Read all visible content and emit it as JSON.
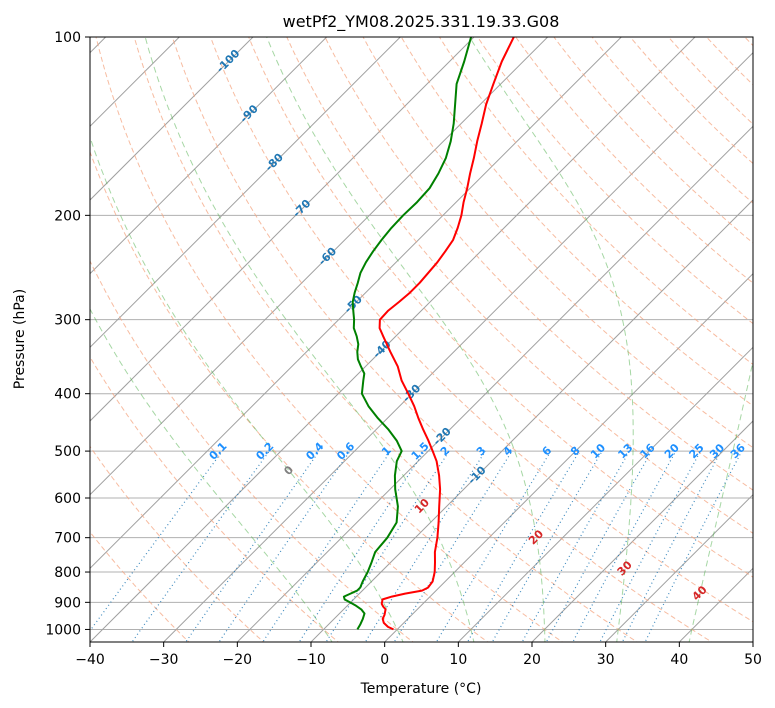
{
  "chart_data": {
    "type": "line",
    "title": "wetPf2_YM08.2025.331.19.33.G08",
    "xlabel": "Temperature (°C)",
    "ylabel": "Pressure (hPa)",
    "xlim": [
      -40,
      50
    ],
    "ylim": [
      1050,
      100
    ],
    "x_ticks": [
      -40,
      -30,
      -20,
      -10,
      0,
      10,
      20,
      30,
      40,
      50
    ],
    "x_tick_labels": [
      "−40",
      "−30",
      "−20",
      "−10",
      "0",
      "10",
      "20",
      "30",
      "40",
      "50"
    ],
    "y_ticks": [
      1000,
      900,
      800,
      700,
      600,
      500,
      400,
      300,
      200,
      100
    ],
    "y_tick_labels": [
      "1000",
      "900",
      "800",
      "700",
      "600",
      "500",
      "400",
      "300",
      "200",
      "100"
    ],
    "skew": 1.0,
    "isotherms": [
      -120,
      -110,
      -100,
      -90,
      -80,
      -70,
      -60,
      -50,
      -40,
      -30,
      -20,
      -10,
      0,
      10,
      20,
      30,
      40,
      50
    ],
    "dry_adiabats": [
      -30,
      -20,
      -10,
      0,
      10,
      20,
      30,
      40,
      50,
      60,
      70,
      80,
      90,
      100,
      110,
      120,
      130,
      140,
      150,
      160,
      170,
      180,
      190,
      200
    ],
    "moist_adiabats": [
      -10,
      0,
      10,
      20,
      30,
      40
    ],
    "mixing_ratios": [
      0.1,
      0.2,
      0.4,
      0.6,
      1,
      1.5,
      2,
      3,
      4,
      6,
      8,
      10,
      13,
      16,
      20,
      25,
      30,
      36
    ],
    "mixing_ratio_labels": [
      "0.1",
      "0.2",
      "0.4",
      "0.6",
      "1",
      "1.5",
      "2",
      "3",
      "4",
      "6",
      "8",
      "10",
      "13",
      "16",
      "20",
      "25",
      "30",
      "36"
    ],
    "isotherm_labels": [
      {
        "text": "-100",
        "value": -100,
        "p": 110
      },
      {
        "text": "-90",
        "value": -90,
        "p": 135
      },
      {
        "text": "-80",
        "value": -80,
        "p": 163
      },
      {
        "text": "-70",
        "value": -70,
        "p": 195
      },
      {
        "text": "-60",
        "value": -60,
        "p": 235
      },
      {
        "text": "-50",
        "value": -50,
        "p": 283
      },
      {
        "text": "-40",
        "value": -40,
        "p": 337
      },
      {
        "text": "-30",
        "value": -30,
        "p": 400
      },
      {
        "text": "-20",
        "value": -20,
        "p": 473
      },
      {
        "text": "-10",
        "value": -10,
        "p": 550
      }
    ],
    "adiabat_labels": [
      {
        "text": "0",
        "value": 0,
        "color": "#808080"
      },
      {
        "text": "10",
        "value": 10,
        "color": "#d62728"
      },
      {
        "text": "20",
        "value": 20,
        "color": "#d62728"
      },
      {
        "text": "30",
        "value": 30,
        "color": "#d62728"
      },
      {
        "text": "40",
        "value": 40,
        "color": "#d62728"
      }
    ],
    "series": [
      {
        "name": "Temperature",
        "color": "#ff0000",
        "pressure": [
          1000,
          990,
          975,
          960,
          945,
          935,
          925,
          915,
          905,
          895,
          890,
          880,
          870,
          860,
          850,
          830,
          800,
          770,
          740,
          700,
          660,
          620,
          580,
          550,
          520,
          500,
          480,
          460,
          440,
          420,
          400,
          380,
          360,
          340,
          320,
          310,
          300,
          290,
          280,
          270,
          260,
          250,
          240,
          230,
          220,
          210,
          200,
          190,
          180,
          170,
          160,
          150,
          140,
          130,
          120,
          110,
          100
        ],
        "values": [
          -0.5,
          -1.6,
          -2.7,
          -3.4,
          -3.7,
          -4.0,
          -4.3,
          -5.0,
          -5.6,
          -5.9,
          -6.1,
          -5.2,
          -3.8,
          -1.9,
          -1.5,
          -1.7,
          -2.7,
          -4.0,
          -5.4,
          -7.0,
          -8.9,
          -11.0,
          -13.2,
          -15.2,
          -17.5,
          -19.4,
          -21.4,
          -23.6,
          -25.8,
          -28.0,
          -30.5,
          -33.2,
          -35.6,
          -38.6,
          -41.7,
          -43.3,
          -44.4,
          -44.5,
          -44.2,
          -44.0,
          -44.0,
          -44.2,
          -44.4,
          -44.8,
          -45.3,
          -46.3,
          -47.5,
          -49.0,
          -50.4,
          -52.0,
          -53.6,
          -55.4,
          -57.2,
          -59.2,
          -61.0,
          -62.9,
          -64.6
        ]
      },
      {
        "name": "Dewpoint",
        "color": "#008000",
        "pressure": [
          1000,
          980,
          960,
          940,
          925,
          910,
          900,
          890,
          880,
          870,
          860,
          850,
          830,
          800,
          770,
          740,
          700,
          660,
          620,
          580,
          550,
          520,
          500,
          480,
          460,
          440,
          420,
          400,
          380,
          370,
          360,
          350,
          340,
          330,
          320,
          310,
          300,
          290,
          280,
          270,
          260,
          250,
          240,
          230,
          220,
          210,
          200,
          190,
          180,
          170,
          160,
          150,
          140,
          130,
          120,
          110,
          100
        ],
        "values": [
          -5.4,
          -5.7,
          -6.1,
          -6.6,
          -7.6,
          -9.0,
          -10.1,
          -11.2,
          -11.7,
          -11.2,
          -10.7,
          -10.7,
          -11.2,
          -11.8,
          -12.6,
          -13.5,
          -13.8,
          -14.6,
          -16.6,
          -19.3,
          -21.2,
          -22.9,
          -23.6,
          -25.7,
          -28.3,
          -31.3,
          -34.2,
          -36.8,
          -38.4,
          -39.2,
          -40.6,
          -42.0,
          -43.1,
          -44.0,
          -45.3,
          -46.8,
          -47.9,
          -49.2,
          -50.5,
          -51.5,
          -52.4,
          -53.4,
          -54.1,
          -54.6,
          -55.0,
          -55.3,
          -55.4,
          -55.3,
          -55.5,
          -56.3,
          -57.4,
          -59.0,
          -61.0,
          -63.4,
          -66.0,
          -68.0,
          -70.4
        ]
      }
    ]
  }
}
